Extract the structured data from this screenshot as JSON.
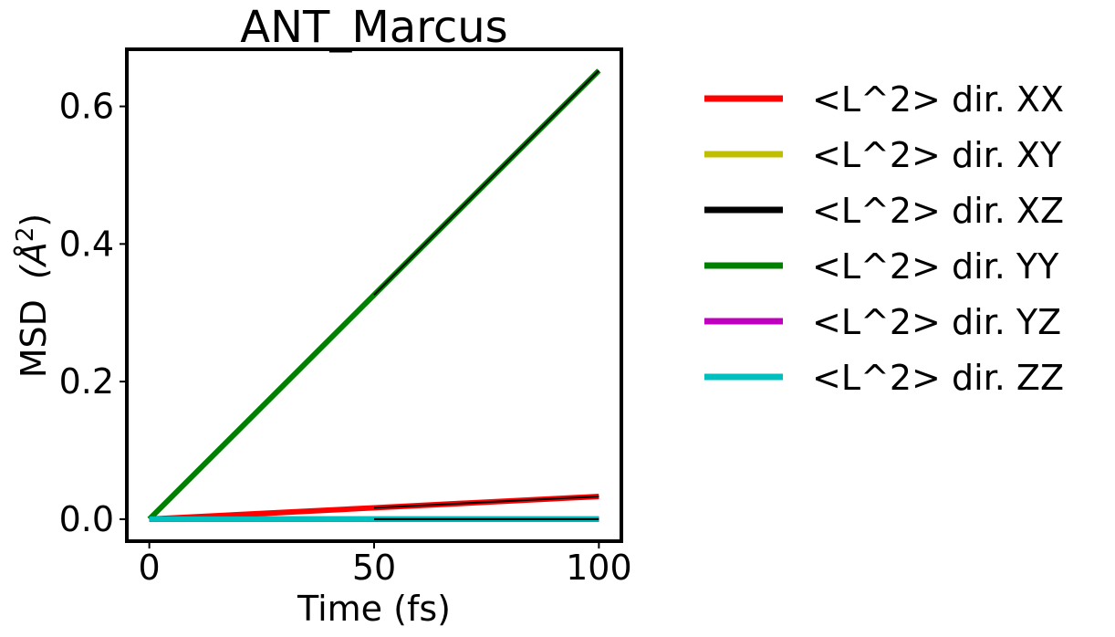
{
  "chart_data": {
    "type": "line",
    "title": "ANT_Marcus",
    "xlabel": "Time (fs)",
    "ylabel": "MSD",
    "ylabel_unit": "(Å",
    "ylabel_sup": "2",
    "ylabel_close": ")",
    "xlim": [
      -5,
      105
    ],
    "ylim": [
      -0.032,
      0.683
    ],
    "xticks": [
      0,
      50,
      100
    ],
    "xtick_labels": [
      "0",
      "50",
      "100"
    ],
    "yticks": [
      0.0,
      0.2,
      0.4,
      0.6
    ],
    "ytick_labels": [
      "0.0",
      "0.2",
      "0.4",
      "0.6"
    ],
    "grid": false,
    "legend_position": "outside-right",
    "series": [
      {
        "name": "<L^2> dir. XX",
        "color": "#ff0000",
        "x": [
          0,
          50,
          100
        ],
        "y": [
          0.0,
          0.0165,
          0.033
        ]
      },
      {
        "name": "<L^2> dir. XY",
        "color": "#bfbf00",
        "x": [
          0,
          50,
          100
        ],
        "y": [
          0.0,
          0.0,
          0.0
        ]
      },
      {
        "name": "<L^2> dir. XZ",
        "color": "#000000",
        "x": [
          0,
          50,
          100
        ],
        "y": [
          0.0,
          0.0,
          0.0
        ]
      },
      {
        "name": "<L^2> dir. YY",
        "color": "#008000",
        "x": [
          0,
          50,
          100
        ],
        "y": [
          0.0,
          0.326,
          0.652
        ]
      },
      {
        "name": "<L^2> dir. YZ",
        "color": "#bf00bf",
        "x": [
          0,
          50,
          100
        ],
        "y": [
          0.0,
          0.0,
          0.0
        ]
      },
      {
        "name": "<L^2> dir. ZZ",
        "color": "#00bfbf",
        "x": [
          0,
          50,
          100
        ],
        "y": [
          0.0,
          0.0,
          0.0
        ]
      }
    ],
    "fit_lines": [
      {
        "color": "#000000",
        "x": [
          50,
          100
        ],
        "y": [
          0.0165,
          0.033
        ]
      },
      {
        "color": "#000000",
        "x": [
          50,
          100
        ],
        "y": [
          0.0,
          0.0
        ]
      },
      {
        "color": "#000000",
        "x": [
          50,
          100
        ],
        "y": [
          0.326,
          0.652
        ]
      }
    ]
  }
}
